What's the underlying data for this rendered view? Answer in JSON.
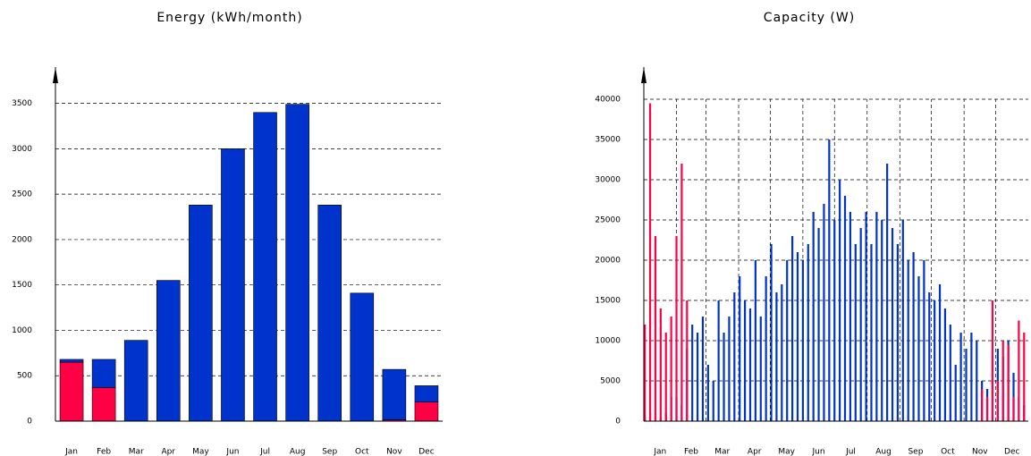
{
  "chart_data": [
    {
      "type": "bar",
      "title": "Energy (kWh/month)",
      "categories": [
        "Jan",
        "Feb",
        "Mar",
        "Apr",
        "May",
        "Jun",
        "Jul",
        "Aug",
        "Sep",
        "Oct",
        "Nov",
        "Dec"
      ],
      "series": [
        {
          "color": "#ff0044",
          "values": [
            650,
            370,
            0,
            0,
            0,
            0,
            0,
            0,
            0,
            0,
            15,
            210
          ]
        },
        {
          "color": "#0033cc",
          "values": [
            30,
            310,
            890,
            1550,
            2380,
            3000,
            3400,
            3490,
            2380,
            1410,
            555,
            180
          ]
        }
      ],
      "stacked": true,
      "ylim": [
        0,
        3900
      ],
      "yticks": [
        0,
        500,
        1000,
        1500,
        2000,
        2500,
        3000,
        3500
      ],
      "grid": true
    },
    {
      "type": "spike",
      "title": "Capacity (W)",
      "x": [
        1,
        6,
        11,
        16,
        21,
        26,
        31,
        36,
        41,
        46,
        51,
        56,
        61,
        66,
        71,
        76,
        81,
        86,
        91,
        96,
        101,
        106,
        111,
        116,
        121,
        126,
        131,
        136,
        141,
        146,
        151,
        156,
        161,
        166,
        171,
        176,
        181,
        186,
        191,
        196,
        201,
        206,
        211,
        216,
        221,
        226,
        231,
        236,
        241,
        246,
        251,
        256,
        261,
        266,
        271,
        276,
        281,
        286,
        291,
        296,
        301,
        306,
        311,
        316,
        321,
        326,
        331,
        336,
        341,
        346,
        351,
        356,
        361
      ],
      "series": [
        {
          "color": "#0033cc",
          "values": [
            500,
            1000,
            800,
            500,
            1000,
            3000,
            3000,
            2000,
            9000,
            12000,
            11000,
            13000,
            7000,
            5000,
            15000,
            11000,
            13000,
            16000,
            18000,
            15000,
            14000,
            20000,
            13000,
            18000,
            22000,
            16000,
            17000,
            20000,
            23000,
            21000,
            20000,
            22000,
            26000,
            24000,
            27000,
            35000,
            25000,
            30000,
            28000,
            26000,
            22000,
            24000,
            26000,
            22000,
            26000,
            25000,
            32000,
            24000,
            22000,
            25000,
            20000,
            21000,
            18000,
            20000,
            16000,
            15000,
            17000,
            14000,
            12000,
            7000,
            11000,
            9000,
            11000,
            10000,
            5000,
            4000,
            8000,
            9000,
            8000,
            10000,
            6000,
            3000,
            2000
          ]
        },
        {
          "color": "#ff0044",
          "values": [
            12000,
            39500,
            23000,
            14000,
            11000,
            13000,
            23000,
            32000,
            15000,
            0,
            0,
            0,
            0,
            0,
            0,
            0,
            0,
            0,
            0,
            0,
            0,
            0,
            0,
            0,
            0,
            0,
            0,
            0,
            0,
            0,
            0,
            0,
            0,
            0,
            0,
            0,
            0,
            0,
            0,
            0,
            0,
            0,
            0,
            0,
            0,
            0,
            0,
            0,
            0,
            0,
            0,
            0,
            0,
            0,
            0,
            0,
            0,
            0,
            0,
            0,
            0,
            0,
            0,
            0,
            4000,
            3000,
            15000,
            5000,
            10000,
            9500,
            3000,
            12500,
            11000
          ]
        }
      ],
      "xlim": [
        0,
        365
      ],
      "xticks": [
        {
          "value": 15.5,
          "label": "Jan"
        },
        {
          "value": 45,
          "label": "Feb"
        },
        {
          "value": 74.5,
          "label": "Mar"
        },
        {
          "value": 105,
          "label": "Apr"
        },
        {
          "value": 135.5,
          "label": "May"
        },
        {
          "value": 166,
          "label": "Jun"
        },
        {
          "value": 196.5,
          "label": "Jul"
        },
        {
          "value": 227.5,
          "label": "Aug"
        },
        {
          "value": 258,
          "label": "Sep"
        },
        {
          "value": 288.5,
          "label": "Oct"
        },
        {
          "value": 319,
          "label": "Nov"
        },
        {
          "value": 349.5,
          "label": "Dec"
        }
      ],
      "xgrid": [
        31,
        59,
        90,
        120,
        151,
        181,
        212,
        243,
        273,
        304,
        334
      ],
      "ylim": [
        0,
        44000
      ],
      "yticks": [
        0,
        5000,
        10000,
        15000,
        20000,
        25000,
        30000,
        35000,
        40000
      ],
      "grid": true
    }
  ]
}
